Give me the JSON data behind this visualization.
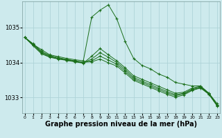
{
  "background_color": "#cdeaed",
  "grid_color": "#aed4d8",
  "line_color": "#1a6e1a",
  "xlabel": "Graphe pression niveau de la mer (hPa)",
  "xlabel_fontsize": 7,
  "yticks": [
    1033,
    1034,
    1035
  ],
  "xticks": [
    0,
    1,
    2,
    3,
    4,
    5,
    6,
    7,
    8,
    9,
    10,
    11,
    12,
    13,
    14,
    15,
    16,
    17,
    18,
    19,
    20,
    21,
    22,
    23
  ],
  "xlim": [
    -0.3,
    23.3
  ],
  "ylim": [
    1032.55,
    1035.75
  ],
  "series": [
    [
      1034.72,
      1034.52,
      1034.37,
      1034.22,
      1034.17,
      1034.12,
      1034.08,
      1034.05,
      1035.3,
      1035.5,
      1035.65,
      1035.25,
      1034.6,
      1034.12,
      1033.92,
      1033.82,
      1033.67,
      1033.58,
      1033.43,
      1033.38,
      1033.33,
      1033.33,
      1033.12,
      1032.82
    ],
    [
      1034.72,
      1034.48,
      1034.25,
      1034.15,
      1034.1,
      1034.06,
      1034.02,
      1033.98,
      1034.18,
      1034.4,
      1034.22,
      1034.05,
      1033.85,
      1033.62,
      1033.52,
      1033.42,
      1033.32,
      1033.22,
      1033.12,
      1033.15,
      1033.27,
      1033.32,
      1033.12,
      1032.78
    ],
    [
      1034.72,
      1034.5,
      1034.27,
      1034.16,
      1034.11,
      1034.07,
      1034.03,
      1033.99,
      1034.1,
      1034.28,
      1034.15,
      1034.0,
      1033.8,
      1033.57,
      1033.47,
      1033.37,
      1033.27,
      1033.17,
      1033.08,
      1033.12,
      1033.24,
      1033.3,
      1033.1,
      1032.77
    ],
    [
      1034.72,
      1034.52,
      1034.3,
      1034.18,
      1034.12,
      1034.08,
      1034.04,
      1034.0,
      1034.05,
      1034.18,
      1034.07,
      1033.95,
      1033.75,
      1033.53,
      1033.43,
      1033.33,
      1033.23,
      1033.13,
      1033.05,
      1033.1,
      1033.22,
      1033.29,
      1033.1,
      1032.76
    ],
    [
      1034.72,
      1034.54,
      1034.32,
      1034.2,
      1034.14,
      1034.09,
      1034.05,
      1034.01,
      1034.02,
      1034.1,
      1033.99,
      1033.9,
      1033.7,
      1033.49,
      1033.39,
      1033.29,
      1033.19,
      1033.09,
      1033.01,
      1033.07,
      1033.2,
      1033.27,
      1033.09,
      1032.75
    ]
  ]
}
